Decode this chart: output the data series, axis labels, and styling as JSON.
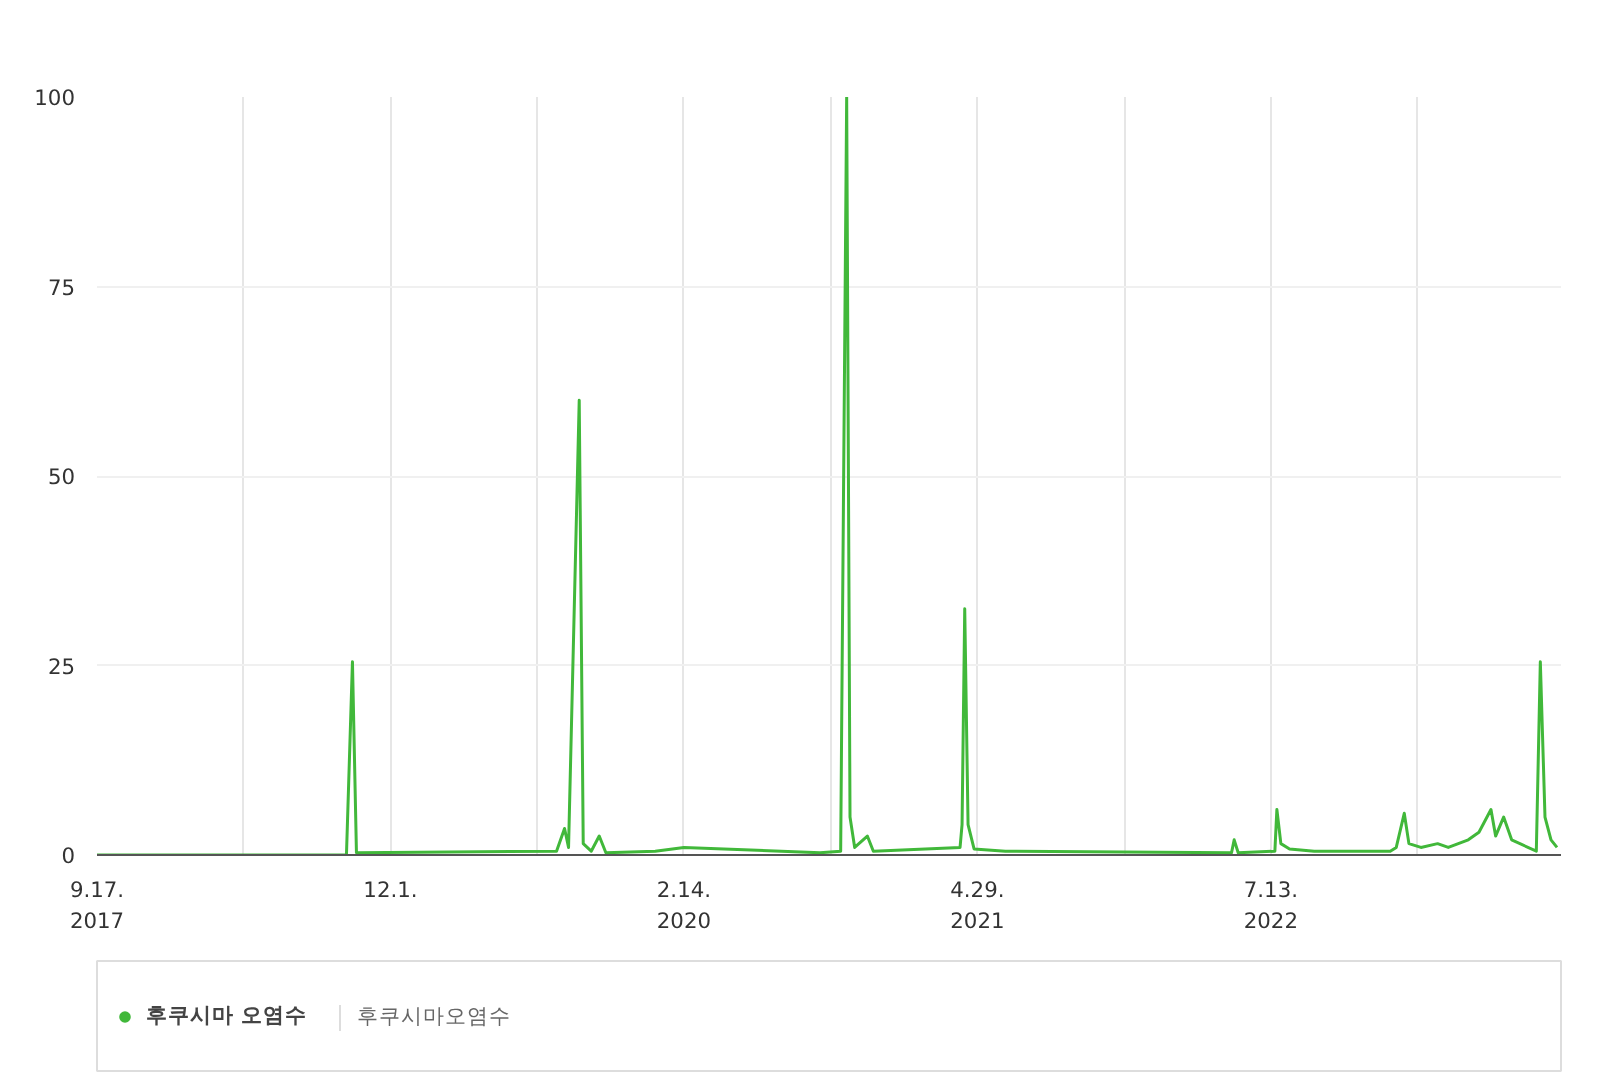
{
  "chart_data": {
    "type": "line",
    "x": [
      "2017-09-17",
      "2018-09-26",
      "2018-10-05",
      "2018-10-11",
      "2019-08-07",
      "2019-08-19",
      "2019-08-25",
      "2019-09-10",
      "2019-09-16",
      "2019-09-28",
      "2019-10-10",
      "2019-10-20",
      "2020-01-02",
      "2020-02-14",
      "2020-09-05",
      "2020-10-06",
      "2020-10-15",
      "2020-10-20",
      "2020-10-27",
      "2020-11-15",
      "2020-11-24",
      "2021-04-03",
      "2021-04-06",
      "2021-04-10",
      "2021-04-15",
      "2021-04-24",
      "2021-06-10",
      "2022-05-15",
      "2022-05-19",
      "2022-05-25",
      "2022-07-19",
      "2022-07-22",
      "2022-07-28",
      "2022-08-10",
      "2022-09-16",
      "2023-01-08",
      "2023-01-17",
      "2023-01-29",
      "2023-02-05",
      "2023-02-23",
      "2023-03-20",
      "2023-04-05",
      "2023-05-05",
      "2023-05-21",
      "2023-06-08",
      "2023-06-15",
      "2023-06-27",
      "2023-07-09",
      "2023-08-15",
      "2023-08-21",
      "2023-08-28",
      "2023-09-06",
      "2023-09-15"
    ],
    "series": [
      {
        "name": "후쿠시마 오염수",
        "color": "#41b83a",
        "values": [
          0,
          0,
          25.5,
          0.3,
          0.5,
          3.5,
          1,
          60,
          1.5,
          0.5,
          2.5,
          0.3,
          0.5,
          1,
          0.3,
          0.5,
          100,
          5,
          1,
          2.5,
          0.5,
          1,
          4,
          32.5,
          4,
          0.8,
          0.5,
          0.3,
          2,
          0.3,
          0.5,
          6,
          1.5,
          0.8,
          0.5,
          0.5,
          1,
          5.5,
          1.5,
          1,
          1.5,
          1,
          2,
          3,
          6,
          2.5,
          5,
          2,
          0.5,
          25.5,
          5,
          2,
          1
        ]
      }
    ],
    "xlim": [
      "2017-09-17",
      "2023-09-21"
    ],
    "xticks": [
      {
        "value": "2017-09-17",
        "label": "9.17.\n2017"
      },
      {
        "value": "2018-04-25",
        "label": null
      },
      {
        "value": "2018-12-01",
        "label": "12.1."
      },
      {
        "value": "2019-07-09",
        "label": null
      },
      {
        "value": "2020-02-14",
        "label": "2.14.\n2020"
      },
      {
        "value": "2020-09-21",
        "label": null
      },
      {
        "value": "2021-04-29",
        "label": "4.29.\n2021"
      },
      {
        "value": "2021-12-05",
        "label": null
      },
      {
        "value": "2022-07-13",
        "label": "7.13.\n2022"
      },
      {
        "value": "2023-02-18",
        "label": null
      }
    ],
    "ylim": [
      0,
      100
    ],
    "yticks": [
      0,
      25,
      50,
      75,
      100
    ],
    "grid": true,
    "legend": "bottom",
    "annotations": [
      "후쿠시마오염수"
    ]
  }
}
